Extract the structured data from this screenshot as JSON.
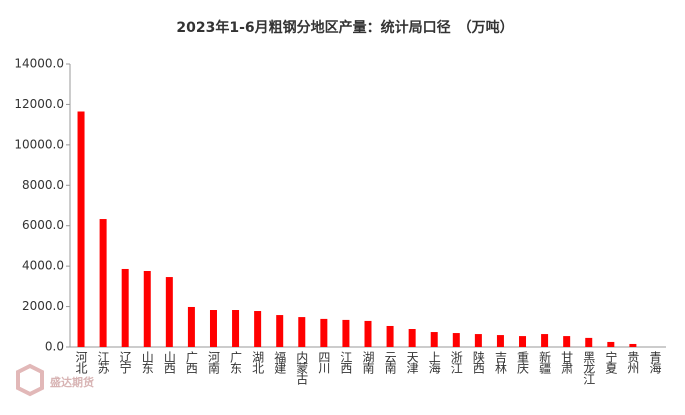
{
  "chart_data": {
    "type": "bar",
    "title": "2023年1-6月粗钢分地区产量：统计局口径　（万吨）",
    "watermark": "盛达期货",
    "categories": [
      "河北",
      "江苏",
      "辽宁",
      "山东",
      "山西",
      "广西",
      "河南",
      "广东",
      "湖北",
      "福建",
      "内蒙古",
      "四川",
      "江西",
      "湖南",
      "云南",
      "天津",
      "上海",
      "浙江",
      "陕西",
      "吉林",
      "重庆",
      "新疆",
      "甘肃",
      "黑龙江",
      "宁夏",
      "贵州",
      "青海"
    ],
    "values": [
      11650,
      6330,
      3860,
      3760,
      3460,
      1980,
      1830,
      1830,
      1780,
      1580,
      1480,
      1390,
      1340,
      1290,
      1040,
      890,
      740,
      690,
      640,
      590,
      540,
      640,
      540,
      450,
      250,
      150,
      0
    ],
    "color": "#ff0000",
    "ylim": [
      0,
      14000
    ],
    "yticks": [
      {
        "value": 0,
        "label": "0.0"
      },
      {
        "value": 2000,
        "label": "2000.0"
      },
      {
        "value": 4000,
        "label": "4000.0"
      },
      {
        "value": 6000,
        "label": "6000.0"
      },
      {
        "value": 8000,
        "label": "8000.0"
      },
      {
        "value": 10000,
        "label": "10000.0"
      },
      {
        "value": 12000,
        "label": "12000.0"
      },
      {
        "value": 14000,
        "label": "14000.0"
      }
    ],
    "grid": false
  }
}
